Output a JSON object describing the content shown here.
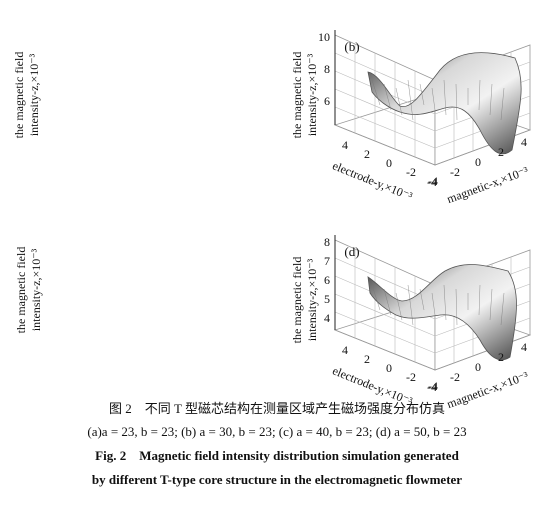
{
  "panels": [
    {
      "z_label_line1": "the magnetic field",
      "z_label_line2": "intensity-z,×10⁻³"
    },
    {
      "tag": "(b)",
      "z_label_line1": "the magnetic field",
      "z_label_line2": "intensity-z,×10⁻³",
      "z_ticks": [
        "10",
        "8",
        "6"
      ],
      "y_label": "electrode-y,×10⁻³",
      "y_ticks": [
        "4",
        "2",
        "0",
        "-2",
        "-4"
      ],
      "x_label": "magnetic-x,×10⁻³",
      "x_ticks": [
        "-4",
        "-2",
        "0",
        "2",
        "4"
      ]
    },
    {
      "z_label_line1": "the magnetic field",
      "z_label_line2": "intensity-z,×10⁻³"
    },
    {
      "tag": "(d)",
      "z_label_line1": "the magnetic field",
      "z_label_line2": "intensity-z,×10⁻³",
      "z_ticks": [
        "8",
        "7",
        "6",
        "5",
        "4"
      ],
      "y_label": "electrode-y,×10⁻³",
      "y_ticks": [
        "4",
        "2",
        "0",
        "-2",
        "-4"
      ],
      "x_label": "magnetic-x,×10⁻³",
      "x_ticks": [
        "-4",
        "-2",
        "0",
        "2",
        "4"
      ]
    }
  ],
  "caption": {
    "cn_title": "图 2　不同 T 型磁芯结构在测量区域产生磁场强度分布仿真",
    "cn_params": "(a)a = 23, b = 23; (b) a = 30, b = 23; (c) a = 40, b = 23; (d) a = 50, b = 23",
    "en_line1": "Fig. 2　Magnetic field intensity distribution simulation generated",
    "en_line2": "by different T-type core structure in the electromagnetic flowmeter"
  }
}
